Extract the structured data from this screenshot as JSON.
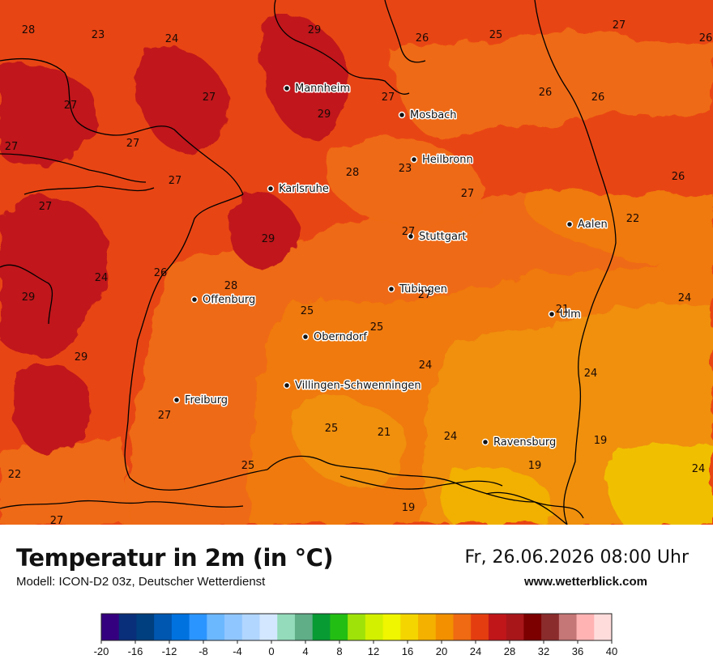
{
  "header": {
    "title": "Temperatur in 2m (in °C)",
    "model": "Modell: ICON-D2 03z, Deutscher Wetterdienst",
    "datetime": "Fr, 26.06.2026 08:00 Uhr",
    "website": "www.wetterblick.com"
  },
  "colors": {
    "t19_21": "#f0c000",
    "t21_23": "#f0900c",
    "t23_25": "#f07a10",
    "t25_27": "#ef6a12",
    "t27_29": "#e84514",
    "t29_31": "#c0161a",
    "border": "#000000"
  },
  "cities": [
    {
      "name": "Mannheim"
    },
    {
      "name": "Mosbach"
    },
    {
      "name": "Heilbronn"
    },
    {
      "name": "Karlsruhe"
    },
    {
      "name": "Aalen"
    },
    {
      "name": "Stuttgart"
    },
    {
      "name": "Tübingen"
    },
    {
      "name": "Offenburg"
    },
    {
      "name": "Ulm"
    },
    {
      "name": "Oberndorf"
    },
    {
      "name": "Villingen-Schwenningen"
    },
    {
      "name": "Freiburg"
    },
    {
      "name": "Ravensburg"
    }
  ],
  "values": [
    "28",
    "23",
    "24",
    "29",
    "26",
    "25",
    "27",
    "26",
    "27",
    "27",
    "27",
    "26",
    "26",
    "27",
    "29",
    "27",
    "26",
    "27",
    "28",
    "23",
    "27",
    "27",
    "22",
    "29",
    "27",
    "24",
    "26",
    "28",
    "24",
    "29",
    "25",
    "27",
    "21",
    "29",
    "25",
    "24",
    "24",
    "27",
    "25",
    "21",
    "24",
    "19",
    "22",
    "25",
    "19",
    "24",
    "19",
    "27"
  ],
  "legend": {
    "colors": [
      "#35007f",
      "#0a2f7a",
      "#003f7f",
      "#0057b0",
      "#0072e0",
      "#2b95ff",
      "#6cb8ff",
      "#90c6ff",
      "#b1d6ff",
      "#d3e8ff",
      "#93dbba",
      "#5fae88",
      "#089b34",
      "#23be13",
      "#9ee20a",
      "#d2f000",
      "#f0f500",
      "#f5d500",
      "#f4b100",
      "#f29000",
      "#ef6a12",
      "#e43e10",
      "#c0161a",
      "#a8161a",
      "#7c0000",
      "#8b2c2c",
      "#c57676",
      "#ffb3b3",
      "#ffdcdc"
    ],
    "ticks": [
      "-20",
      "-16",
      "-12",
      "-8",
      "-4",
      "0",
      "4",
      "8",
      "12",
      "16",
      "20",
      "24",
      "28",
      "32",
      "36",
      "40"
    ]
  }
}
